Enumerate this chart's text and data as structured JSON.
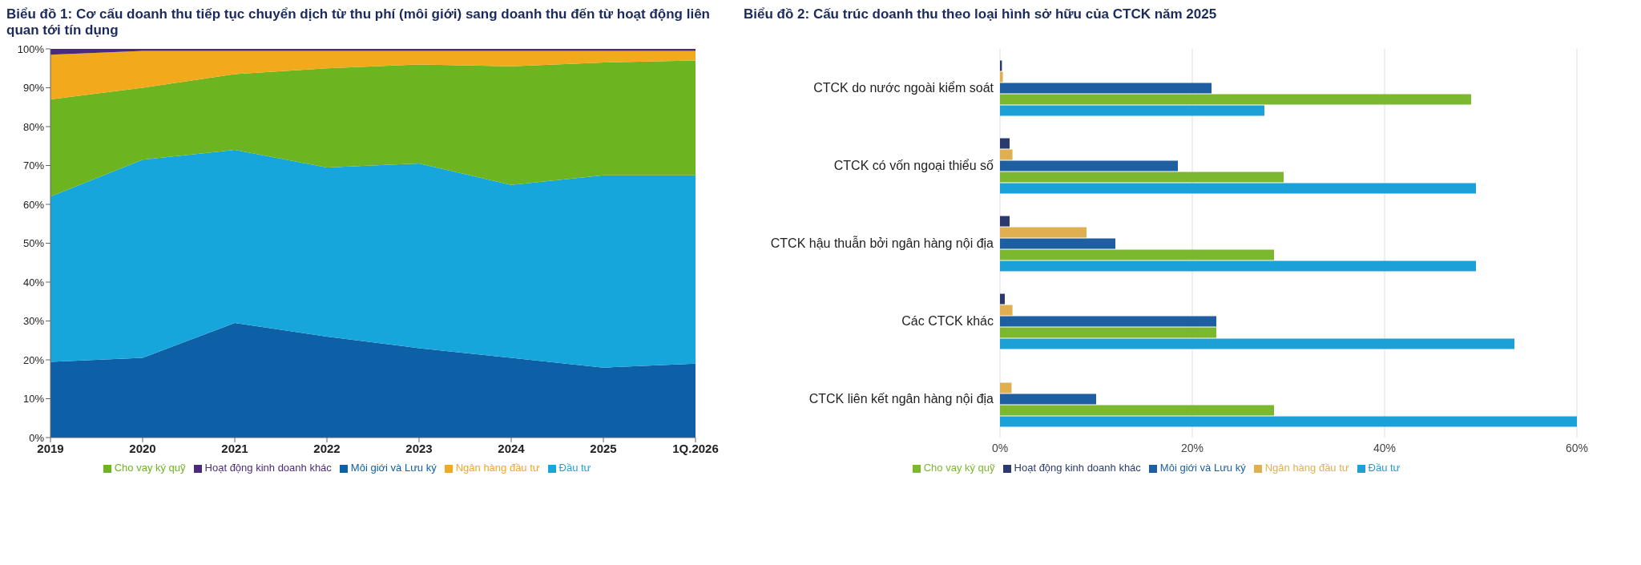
{
  "chart_data": [
    {
      "type": "area",
      "stacked": true,
      "title": "Biểu đồ 1: Cơ cấu doanh thu tiếp tục chuyển dịch từ thu phí (môi giới) sang doanh thu đến từ hoạt động liên quan tới tín dụng",
      "categories": [
        "2019",
        "2020",
        "2021",
        "2022",
        "2023",
        "2024",
        "2025",
        "1Q.2026"
      ],
      "ylim": [
        0,
        100
      ],
      "yticks": [
        {
          "value": 0,
          "label": "0%"
        },
        {
          "value": 10,
          "label": "10%"
        },
        {
          "value": 20,
          "label": "20%"
        },
        {
          "value": 30,
          "label": "30%"
        },
        {
          "value": 40,
          "label": "40%"
        },
        {
          "value": 50,
          "label": "50%"
        },
        {
          "value": 60,
          "label": "60%"
        },
        {
          "value": 70,
          "label": "70%"
        },
        {
          "value": 80,
          "label": "80%"
        },
        {
          "value": 90,
          "label": "90%"
        },
        {
          "value": 100,
          "label": "100%"
        }
      ],
      "grid": false,
      "legend": "bottom",
      "series": [
        {
          "name": "Môi giới và Lưu ký",
          "color": "#0d5fa6",
          "values": [
            19.5,
            20.5,
            29.5,
            26,
            23,
            20.5,
            18,
            19
          ]
        },
        {
          "name": "Đầu tư",
          "color": "#16a6dc",
          "values": [
            42.5,
            51,
            44.5,
            43.5,
            47.5,
            44.5,
            49.5,
            48.5
          ]
        },
        {
          "name": "Cho vay ký quỹ",
          "color": "#6cb520",
          "values": [
            25,
            18.5,
            19.5,
            25.5,
            25.5,
            30.5,
            29,
            29.5
          ]
        },
        {
          "name": "Ngân hàng đầu tư",
          "color": "#f2a91c",
          "values": [
            11.5,
            9.5,
            6,
            4.5,
            3.5,
            4,
            3,
            2.5
          ]
        },
        {
          "name": "Hoạt động kinh doanh khác",
          "color": "#4b2a7a",
          "values": [
            1.5,
            0.5,
            0.5,
            0.5,
            0.5,
            0.5,
            0.5,
            0.5
          ]
        }
      ]
    },
    {
      "type": "bar",
      "orientation": "horizontal",
      "title": "Biểu đồ 2: Cấu trúc doanh thu theo loại hình sở hữu của CTCK năm 2025",
      "categories": [
        "CTCK do nước ngoài kiểm soát",
        "CTCK có vốn ngoại thiểu số",
        "CTCK hậu thuẫn bởi ngân hàng nội địa",
        "Các CTCK khác",
        "CTCK liên kết ngân hàng nội địa"
      ],
      "xlim": [
        0,
        60
      ],
      "xticks": [
        {
          "value": 0,
          "label": "0%"
        },
        {
          "value": 20,
          "label": "20%"
        },
        {
          "value": 40,
          "label": "40%"
        },
        {
          "value": 60,
          "label": "60%"
        }
      ],
      "grid": "x",
      "legend": "bottom",
      "series": [
        {
          "name": "Hoạt động kinh doanh khác",
          "color": "#2b3a6e",
          "values": [
            0.2,
            1,
            1,
            0.5,
            null
          ]
        },
        {
          "name": "Ngân hàng đầu tư",
          "color": "#e0b050",
          "values": [
            0.3,
            1.3,
            9,
            1.3,
            1.2
          ]
        },
        {
          "name": "Môi giới và Lưu ký",
          "color": "#1d5fa0",
          "values": [
            22,
            18.5,
            12,
            22.5,
            10
          ]
        },
        {
          "name": "Cho vay ký quỹ",
          "color": "#7cb82f",
          "values": [
            49,
            29.5,
            28.5,
            22.5,
            28.5
          ]
        },
        {
          "name": "Đầu tư",
          "color": "#1ba0d8",
          "values": [
            27.5,
            49.5,
            49.5,
            53.5,
            60
          ]
        }
      ]
    }
  ]
}
